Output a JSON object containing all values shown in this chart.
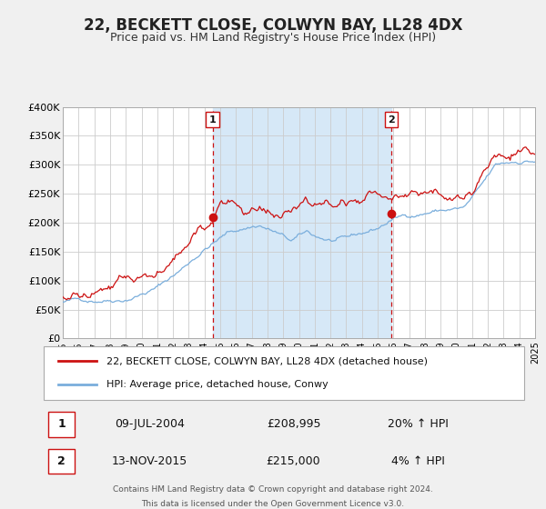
{
  "title": "22, BECKETT CLOSE, COLWYN BAY, LL28 4DX",
  "subtitle": "Price paid vs. HM Land Registry's House Price Index (HPI)",
  "title_fontsize": 12,
  "subtitle_fontsize": 9,
  "legend_line1": "22, BECKETT CLOSE, COLWYN BAY, LL28 4DX (detached house)",
  "legend_line2": "HPI: Average price, detached house, Conwy",
  "event1_label": "1",
  "event1_date": "09-JUL-2004",
  "event1_price": "£208,995",
  "event1_hpi": "20% ↑ HPI",
  "event2_label": "2",
  "event2_date": "13-NOV-2015",
  "event2_price": "£215,000",
  "event2_hpi": "4% ↑ HPI",
  "xmin": 1995,
  "xmax": 2025,
  "ymin": 0,
  "ymax": 400000,
  "yticks": [
    0,
    50000,
    100000,
    150000,
    200000,
    250000,
    300000,
    350000,
    400000
  ],
  "ytick_labels": [
    "£0",
    "£50K",
    "£100K",
    "£150K",
    "£200K",
    "£250K",
    "£300K",
    "£350K",
    "£400K"
  ],
  "red_color": "#cc1111",
  "blue_color": "#7aaedc",
  "shade_color": "#d6e8f7",
  "event_x1": 2004.52,
  "event_y1": 208995,
  "event_x2": 2015.87,
  "event_y2": 215000,
  "footer_line1": "Contains HM Land Registry data © Crown copyright and database right 2024.",
  "footer_line2": "This data is licensed under the Open Government Licence v3.0.",
  "bg_color": "#f0f0f0",
  "plot_bg_color": "#ffffff",
  "grid_color": "#cccccc"
}
